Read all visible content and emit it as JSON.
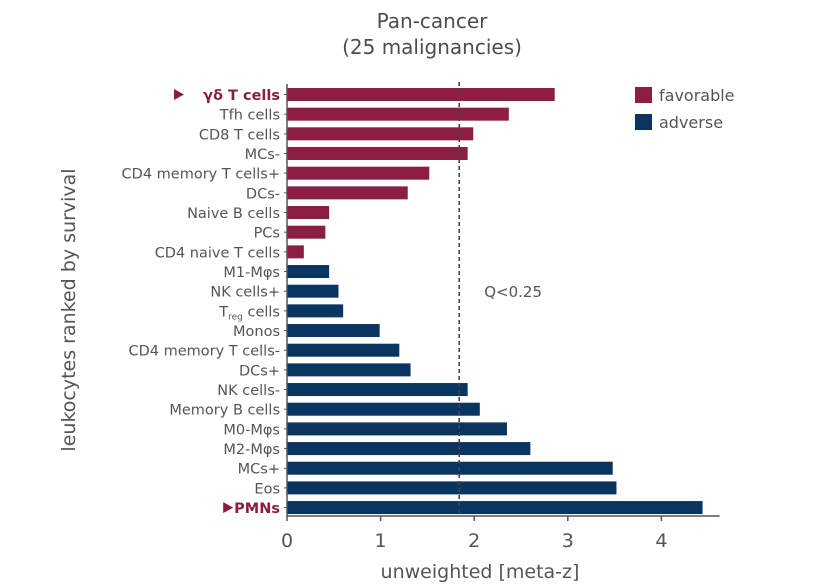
{
  "chart_data": {
    "type": "bar",
    "orientation": "horizontal",
    "title": [
      "Pan-cancer",
      "(25 malignancies)"
    ],
    "xlabel": "unweighted [meta-z]",
    "ylabel": "leukocytes ranked by survival",
    "xlim": [
      0,
      4.6
    ],
    "xticks": [
      0,
      1,
      2,
      3,
      4
    ],
    "grid": false,
    "legend": {
      "position": "top-right",
      "entries": [
        {
          "name": "favorable",
          "color": "#8b1e42"
        },
        {
          "name": "adverse",
          "color": "#0b3561"
        }
      ]
    },
    "threshold": {
      "value": 1.84,
      "label": "Q<0.25",
      "style": "dashed"
    },
    "categories": [
      {
        "label": "γδ T cells",
        "sub": "",
        "value": 2.86,
        "group": "favorable",
        "highlight": true
      },
      {
        "label": "Tfh cells",
        "sub": "",
        "value": 2.37,
        "group": "favorable",
        "highlight": false
      },
      {
        "label": "CD8 T cells",
        "sub": "",
        "value": 1.99,
        "group": "favorable",
        "highlight": false
      },
      {
        "label": "MCs-",
        "sub": "",
        "value": 1.93,
        "group": "favorable",
        "highlight": false
      },
      {
        "label": "CD4 memory T cells+",
        "sub": "",
        "value": 1.52,
        "group": "favorable",
        "highlight": false
      },
      {
        "label": "DCs-",
        "sub": "",
        "value": 1.29,
        "group": "favorable",
        "highlight": false
      },
      {
        "label": "Naive B cells",
        "sub": "",
        "value": 0.45,
        "group": "favorable",
        "highlight": false
      },
      {
        "label": "PCs",
        "sub": "",
        "value": 0.41,
        "group": "favorable",
        "highlight": false
      },
      {
        "label": "CD4 naive T cells",
        "sub": "",
        "value": 0.18,
        "group": "favorable",
        "highlight": false
      },
      {
        "label": "M1-Mφs",
        "sub": "",
        "value": 0.45,
        "group": "adverse",
        "highlight": false
      },
      {
        "label": "NK cells+",
        "sub": "",
        "value": 0.55,
        "group": "adverse",
        "highlight": false
      },
      {
        "label": "T",
        "sub": "reg",
        "suffix": " cells",
        "value": 0.6,
        "group": "adverse",
        "highlight": false
      },
      {
        "label": "Monos",
        "sub": "",
        "value": 0.99,
        "group": "adverse",
        "highlight": false
      },
      {
        "label": "CD4 memory T cells-",
        "sub": "",
        "value": 1.2,
        "group": "adverse",
        "highlight": false
      },
      {
        "label": "DCs+",
        "sub": "",
        "value": 1.32,
        "group": "adverse",
        "highlight": false
      },
      {
        "label": "NK cells-",
        "sub": "",
        "value": 1.93,
        "group": "adverse",
        "highlight": false
      },
      {
        "label": "Memory B cells",
        "sub": "",
        "value": 2.06,
        "group": "adverse",
        "highlight": false
      },
      {
        "label": "M0-Mφs",
        "sub": "",
        "value": 2.35,
        "group": "adverse",
        "highlight": false
      },
      {
        "label": "M2-Mφs",
        "sub": "",
        "value": 2.6,
        "group": "adverse",
        "highlight": false
      },
      {
        "label": "MCs+",
        "sub": "",
        "value": 3.48,
        "group": "adverse",
        "highlight": false
      },
      {
        "label": "Eos",
        "sub": "",
        "value": 3.52,
        "group": "adverse",
        "highlight": false
      },
      {
        "label": "PMNs",
        "sub": "",
        "value": 4.44,
        "group": "adverse",
        "highlight": true
      }
    ]
  }
}
